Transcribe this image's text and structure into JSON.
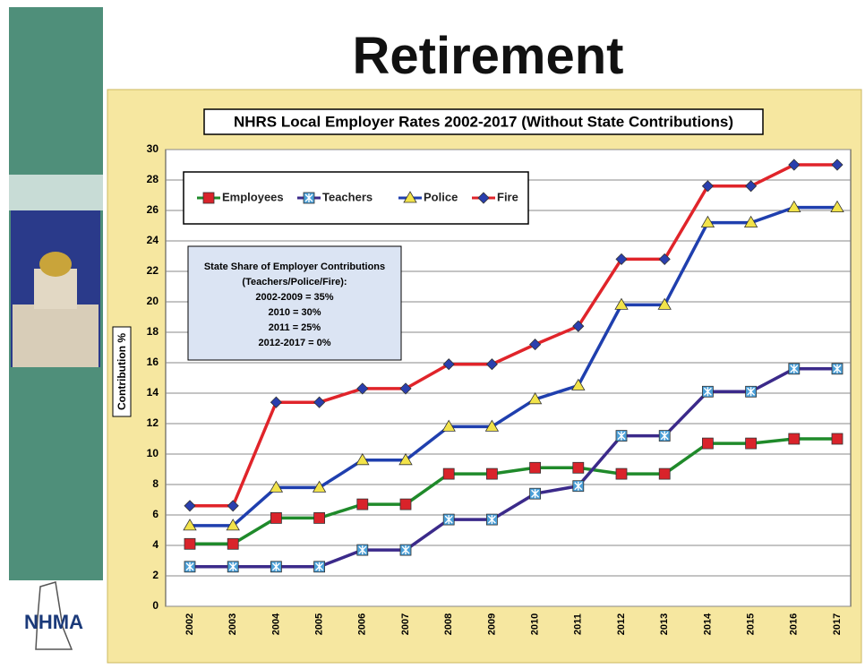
{
  "slide_title": "Retirement",
  "logo": "NHMA",
  "chart_data": {
    "type": "line",
    "title": "NHRS Local Employer Rates 2002-2017 (Without State Contributions)",
    "y_label": "Contribution %",
    "categories": [
      "2002",
      "2003",
      "2004",
      "2005",
      "2006",
      "2007",
      "2008",
      "2009",
      "2010",
      "2011",
      "2012",
      "2013",
      "2014",
      "2015",
      "2016",
      "2017"
    ],
    "series": [
      {
        "name": "Employees",
        "color": "#1f8a2a",
        "marker": "square",
        "marker_color": "#d9232a",
        "values": [
          4.1,
          4.1,
          5.8,
          5.8,
          6.7,
          6.7,
          8.7,
          8.7,
          9.1,
          9.1,
          8.7,
          8.7,
          10.7,
          10.7,
          11.0,
          11.0
        ]
      },
      {
        "name": "Teachers",
        "color": "#3b2a8a",
        "marker": "star-square",
        "marker_color": "#4a9fd8",
        "values": [
          2.6,
          2.6,
          2.6,
          2.6,
          3.7,
          3.7,
          5.7,
          5.7,
          7.4,
          7.9,
          11.2,
          11.2,
          14.1,
          14.1,
          15.6,
          15.6
        ]
      },
      {
        "name": "Police",
        "color": "#1f3fae",
        "marker": "triangle",
        "marker_color": "#f2e34a",
        "values": [
          5.3,
          5.3,
          7.8,
          7.8,
          9.6,
          9.6,
          11.8,
          11.8,
          13.6,
          14.5,
          19.8,
          19.8,
          25.2,
          25.2,
          26.2,
          26.2
        ]
      },
      {
        "name": "Fire",
        "color": "#e0242a",
        "marker": "diamond",
        "marker_color": "#2a3fae",
        "values": [
          6.6,
          6.6,
          13.4,
          13.4,
          14.3,
          14.3,
          15.9,
          15.9,
          17.2,
          18.4,
          22.8,
          22.8,
          27.6,
          27.6,
          29.0,
          29.0
        ]
      }
    ],
    "annotation": [
      "State Share of Employer Contributions",
      "(Teachers/Police/Fire):",
      "2002-2009 = 35%",
      "2010 = 30%",
      "2011 = 25%",
      "2012-2017 = 0%"
    ],
    "ylim": [
      0,
      30
    ],
    "yticks": [
      0,
      2,
      4,
      6,
      8,
      10,
      12,
      14,
      16,
      18,
      20,
      22,
      24,
      26,
      28,
      30
    ],
    "grid": true
  }
}
